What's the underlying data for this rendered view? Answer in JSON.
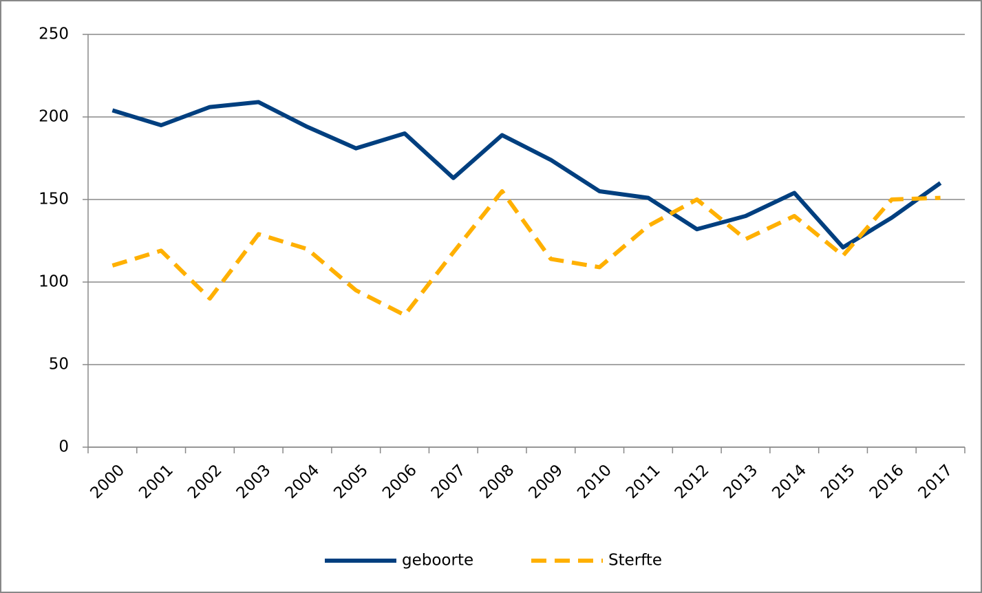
{
  "chart_data": {
    "type": "line",
    "categories": [
      "2000",
      "2001",
      "2002",
      "2003",
      "2004",
      "2005",
      "2006",
      "2007",
      "2008",
      "2009",
      "2010",
      "2011",
      "2012",
      "2013",
      "2014",
      "2015",
      "2016",
      "2017"
    ],
    "series": [
      {
        "name": "geboorte",
        "color": "#003f7f",
        "style": "solid",
        "values": [
          204,
          195,
          206,
          209,
          194,
          181,
          190,
          163,
          189,
          174,
          155,
          151,
          132,
          140,
          154,
          121,
          139,
          160
        ]
      },
      {
        "name": "Sterfte",
        "color": "#ffb000",
        "style": "dashed",
        "values": [
          110,
          119,
          90,
          129,
          120,
          95,
          80,
          118,
          155,
          114,
          109,
          134,
          150,
          126,
          140,
          116,
          150,
          151
        ]
      }
    ],
    "ylim": [
      0,
      250
    ],
    "yticks": [
      0,
      50,
      100,
      150,
      200,
      250
    ],
    "grid": true,
    "legend": "bottom"
  }
}
